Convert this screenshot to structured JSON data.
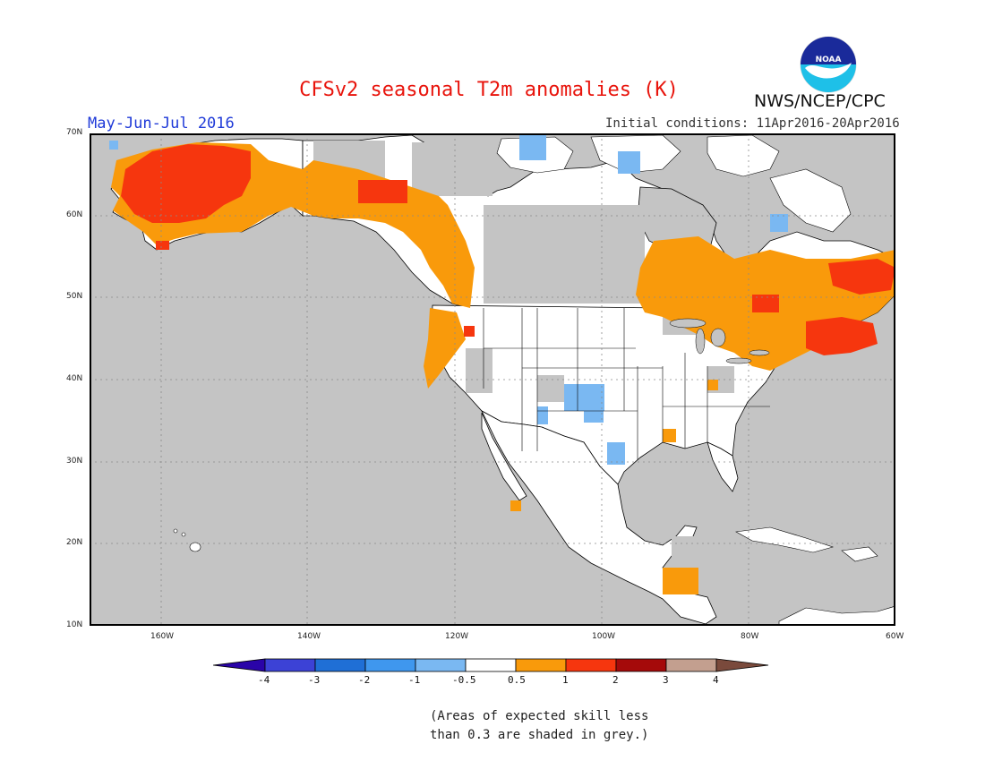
{
  "header": {
    "title": "CFSv2 seasonal T2m anomalies (K)",
    "organization": "NWS/NCEP/CPC",
    "logo_text": "NOAA",
    "season": "May-Jun-Jul 2016",
    "initial_conditions": "Initial conditions: 11Apr2016-20Apr2016"
  },
  "map": {
    "projection": "cylindrical",
    "lon_range": [
      -172,
      -60
    ],
    "lat_range": [
      10,
      70
    ],
    "lat_labels": [
      "70N",
      "60N",
      "50N",
      "40N",
      "30N",
      "20N",
      "10N"
    ],
    "lon_labels": [
      "160W",
      "140W",
      "120W",
      "100W",
      "80W",
      "60W"
    ],
    "colors": {
      "land_skill": "#ffffff",
      "low_skill_grey": "#c4c4c4",
      "ocean": "#c4c4c4",
      "coast": "#000000"
    }
  },
  "legend": {
    "tick_labels": [
      "-4",
      "-3",
      "-2",
      "-1",
      "-0.5",
      "0.5",
      "1",
      "2",
      "3",
      "4"
    ],
    "colors": [
      "#2a04a8",
      "#3c42d6",
      "#1f6fd6",
      "#3f97ee",
      "#7ab8f2",
      "#ffffff",
      "#f99a0b",
      "#f6360e",
      "#a50a0a",
      "#c39f8f",
      "#7a4a3c"
    ]
  },
  "footnote": {
    "line1": "(Areas of expected skill less",
    "line2": "than 0.3 are shaded in grey.)"
  }
}
